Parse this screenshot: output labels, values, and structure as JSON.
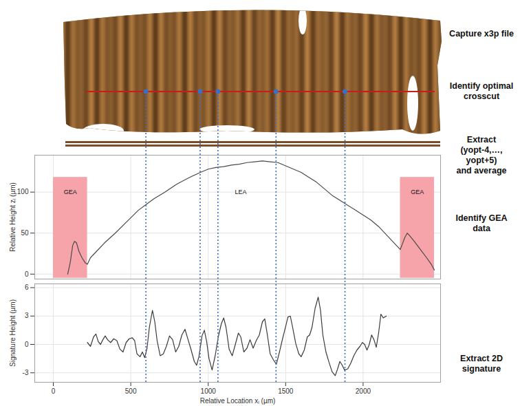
{
  "steps": [
    [
      "Capture x3p file"
    ],
    [
      "Identify optimal",
      "crosscut"
    ],
    [
      "Extract",
      "(yopt-4,…, yopt+5)",
      "and average"
    ],
    [
      "Identify GEA",
      "data"
    ],
    [
      "Extract 2D",
      "signature"
    ]
  ],
  "crosscut_locations": [
    600,
    950,
    1065,
    1440,
    1885
  ],
  "crosscut_marker_color": "#3a6fc4",
  "crosscut_line_color": "#cc1a1a",
  "chart_data": [
    {
      "type": "line",
      "y_label": "Relative Height zᵢ (µm)",
      "xlim": [
        -120,
        2500
      ],
      "xticks": [
        0,
        500,
        1000,
        1500,
        2000
      ],
      "ylim": [
        -6,
        145
      ],
      "yticks": [
        0,
        50,
        100
      ],
      "grid": true,
      "tick_labels": "y",
      "x": [
        93,
        110,
        125,
        137,
        150,
        165,
        185,
        205,
        220,
        240,
        280,
        330,
        400,
        480,
        550,
        600,
        650,
        720,
        800,
        880,
        950,
        1000,
        1050,
        1100,
        1150,
        1200,
        1250,
        1300,
        1350,
        1400,
        1450,
        1500,
        1550,
        1600,
        1650,
        1700,
        1750,
        1800,
        1850,
        1900,
        1950,
        2000,
        2050,
        2100,
        2150,
        2200,
        2240,
        2250,
        2270,
        2285,
        2300,
        2330,
        2370,
        2410,
        2440,
        2460
      ],
      "series": [
        {
          "color": "#4a4a4a",
          "values": [
            0,
            15,
            35,
            40,
            38,
            28,
            20,
            14,
            12,
            20,
            28,
            38,
            50,
            65,
            78,
            85,
            92,
            100,
            110,
            118,
            124,
            128,
            130,
            131,
            133,
            134,
            136,
            137,
            138,
            137,
            136,
            132,
            128,
            124,
            118,
            112,
            104,
            96,
            90,
            84,
            78,
            72,
            66,
            58,
            48,
            38,
            30,
            35,
            45,
            50,
            47,
            40,
            30,
            20,
            12,
            5
          ]
        }
      ],
      "shaded_regions": [
        {
          "x": [
            0,
            220
          ],
          "y": [
            -5,
            118
          ],
          "color": "#f7a3aa"
        },
        {
          "x": [
            2240,
            2460
          ],
          "y": [
            -5,
            118
          ],
          "color": "#f7a3aa"
        }
      ],
      "annotations": [
        {
          "text": "GEA",
          "x": 110,
          "y": 100
        },
        {
          "text": "LEA",
          "x": 1210,
          "y": 100
        },
        {
          "text": "GEA",
          "x": 2350,
          "y": 100
        }
      ]
    },
    {
      "type": "line",
      "x_label": "Relative Location xᵢ (µm)",
      "y_label": "Signature Height (µm)",
      "xlim": [
        -120,
        2500
      ],
      "xticks": [
        0,
        500,
        1000,
        1500,
        2000
      ],
      "ylim": [
        -4,
        6.4
      ],
      "yticks": [
        -3,
        0,
        3,
        6
      ],
      "grid": true,
      "tick_labels": true,
      "x": [
        220,
        240,
        260,
        275,
        290,
        305,
        320,
        335,
        350,
        370,
        390,
        410,
        430,
        450,
        470,
        490,
        510,
        525,
        540,
        560,
        575,
        590,
        605,
        620,
        640,
        655,
        670,
        690,
        710,
        730,
        750,
        770,
        790,
        810,
        830,
        850,
        870,
        890,
        910,
        925,
        940,
        960,
        975,
        990,
        1005,
        1025,
        1045,
        1065,
        1085,
        1100,
        1115,
        1135,
        1155,
        1175,
        1195,
        1210,
        1230,
        1250,
        1270,
        1290,
        1310,
        1330,
        1350,
        1365,
        1380,
        1400,
        1420,
        1440,
        1460,
        1480,
        1500,
        1515,
        1530,
        1545,
        1565,
        1585,
        1600,
        1620,
        1640,
        1655,
        1670,
        1690,
        1710,
        1725,
        1740,
        1760,
        1780,
        1800,
        1820,
        1835,
        1850,
        1865,
        1880,
        1900,
        1920,
        1940,
        1960,
        1980,
        1995,
        2010,
        2025,
        2040,
        2055,
        2070,
        2085,
        2100,
        2115,
        2130,
        2150
      ],
      "series": [
        {
          "color": "#3a3a3a",
          "values": [
            0.2,
            -0.2,
            0.8,
            1.1,
            0.3,
            0.0,
            0.5,
            0.9,
            0.5,
            0.2,
            0.6,
            0.4,
            -0.5,
            -0.8,
            0.2,
            0.6,
            0.7,
            0.4,
            -1.0,
            -1.3,
            -0.8,
            -1.4,
            -0.4,
            1.8,
            3.6,
            2.4,
            0.4,
            -1.2,
            -1.0,
            -0.2,
            0.9,
            0.5,
            -0.8,
            -0.2,
            1.0,
            1.6,
            0.5,
            -0.6,
            -1.8,
            -2.2,
            -1.3,
            0.9,
            1.5,
            0.3,
            -1.5,
            -2.7,
            -1.2,
            0.8,
            2.2,
            2.8,
            1.8,
            -0.5,
            -1.2,
            0.0,
            1.2,
            0.8,
            -0.8,
            -0.4,
            0.5,
            -0.4,
            0.4,
            1.0,
            2.4,
            2.7,
            1.2,
            -1.0,
            -1.6,
            -2.1,
            -0.8,
            0.6,
            1.9,
            2.9,
            3.0,
            1.8,
            0.1,
            -1.0,
            -1.3,
            -0.6,
            0.8,
            1.0,
            1.8,
            3.8,
            5.0,
            3.6,
            1.0,
            -0.8,
            -1.9,
            -2.9,
            -3.3,
            -2.6,
            -1.8,
            -2.2,
            -2.7,
            -2.6,
            -2.0,
            -1.2,
            -0.6,
            -0.2,
            0.2,
            0.0,
            -0.6,
            0.0,
            1.0,
            0.5,
            -0.3,
            1.2,
            3.2,
            2.8,
            3.0
          ]
        }
      ]
    }
  ]
}
